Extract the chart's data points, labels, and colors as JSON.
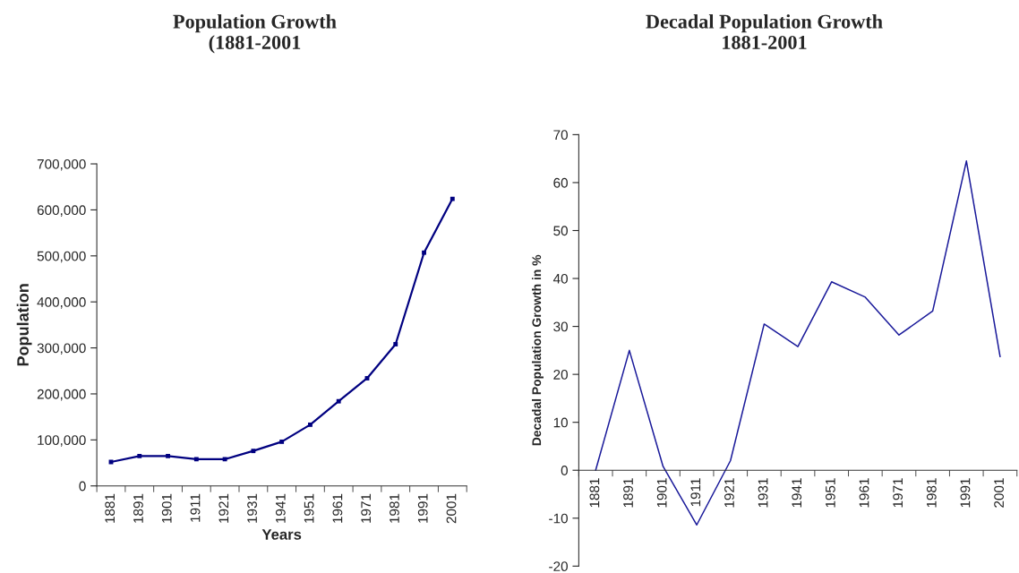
{
  "chart_data": [
    {
      "type": "line",
      "title": "Population Growth\n(1881-2001",
      "xlabel": "Years",
      "ylabel": "Population",
      "marker": "square",
      "categories": [
        "1881",
        "1891",
        "1901",
        "1911",
        "1921",
        "1931",
        "1941",
        "1951",
        "1961",
        "1971",
        "1981",
        "1991",
        "2001"
      ],
      "series": [
        {
          "color": "#000080",
          "values": [
            52000,
            65000,
            65000,
            58000,
            58000,
            76000,
            96000,
            133000,
            184000,
            234000,
            308000,
            507000,
            624000
          ]
        }
      ],
      "ylim": [
        0,
        700000
      ],
      "yticks": [
        0,
        {
          "value": 100000,
          "label": "100,000"
        },
        {
          "value": 200000,
          "label": "200,000"
        },
        {
          "value": 300000,
          "label": "300,000"
        },
        {
          "value": 400000,
          "label": "400,000"
        },
        {
          "value": 500000,
          "label": "500,000"
        },
        {
          "value": 600000,
          "label": "600,000"
        },
        {
          "value": 700000,
          "label": "700,000"
        }
      ]
    },
    {
      "type": "line",
      "title": "Decadal Population Growth\n1881-2001",
      "ylabel": "Decadal Population Growth in %",
      "marker": "none",
      "categories": [
        "1881",
        "1891",
        "1901",
        "1911",
        "1921",
        "1931",
        "1941",
        "1951",
        "1961",
        "1971",
        "1981",
        "1991",
        "2001"
      ],
      "series": [
        {
          "color": "#1a1a9a",
          "values": [
            0,
            25,
            0.8,
            -11.4,
            2,
            30.5,
            25.8,
            39.3,
            36.1,
            28.2,
            33.2,
            64.5,
            23.7
          ]
        }
      ],
      "ylim": [
        -20,
        70
      ],
      "yticks": [
        -20,
        -10,
        0,
        10,
        20,
        30,
        40,
        50,
        60,
        70
      ]
    }
  ]
}
